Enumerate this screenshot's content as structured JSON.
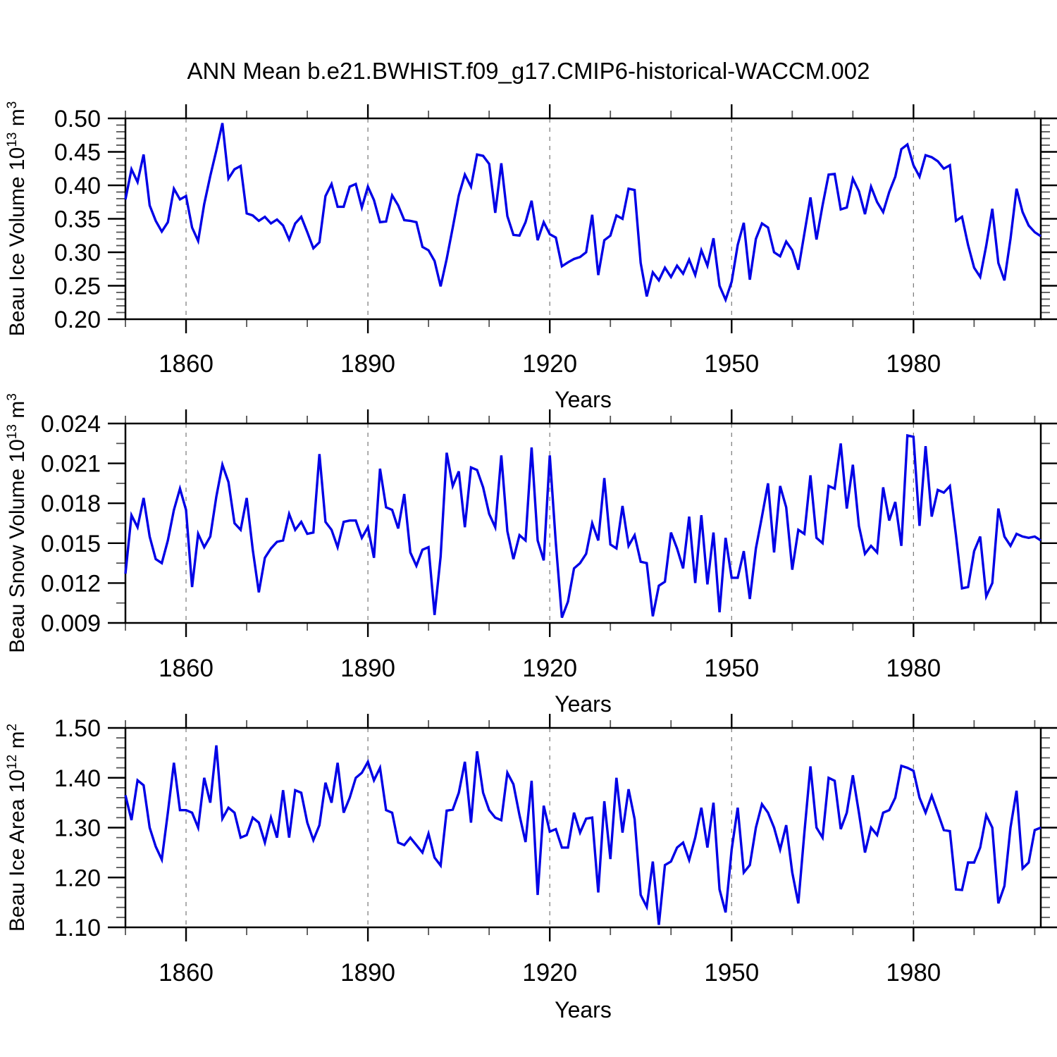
{
  "title": "ANN Mean b.e21.BWHIST.f09_g17.CMIP6-historical-WACCM.002",
  "style": {
    "line_color": "#0000E6",
    "grid_color": "#777777",
    "frame_color": "#000000",
    "minor_tick_color": "#555555"
  },
  "x_axis": {
    "label": "Years",
    "start": 1850,
    "end": 2001,
    "major_ticks": [
      1860,
      1890,
      1920,
      1950,
      1980
    ],
    "minor_tick_step": 10
  },
  "chart_data": [
    {
      "type": "line",
      "name": "beau-ice-volume",
      "title": "",
      "ylabel_plain": "Beau Ice Volume 10^13 m^3",
      "ylabel_segments": [
        {
          "text": "Beau Ice Volume 10"
        },
        {
          "text": "13",
          "super": true
        },
        {
          "text": " m"
        },
        {
          "text": "3",
          "super": true
        }
      ],
      "ylim": [
        0.2,
        0.5
      ],
      "ytick_labels": [
        "0.20",
        "0.25",
        "0.30",
        "0.35",
        "0.40",
        "0.45",
        "0.50"
      ],
      "ytick_minor_step": 0.01,
      "xlabel": "Years",
      "grid": "vertical-dashed",
      "legend": "none",
      "years": {
        "start": 1850,
        "end": 2001
      },
      "values": [
        0.379,
        0.424,
        0.405,
        0.446,
        0.37,
        0.347,
        0.331,
        0.345,
        0.395,
        0.379,
        0.384,
        0.337,
        0.317,
        0.372,
        0.414,
        0.452,
        0.493,
        0.41,
        0.424,
        0.429,
        0.358,
        0.355,
        0.347,
        0.353,
        0.343,
        0.349,
        0.34,
        0.319,
        0.343,
        0.353,
        0.33,
        0.306,
        0.315,
        0.384,
        0.402,
        0.368,
        0.368,
        0.398,
        0.402,
        0.367,
        0.398,
        0.378,
        0.345,
        0.346,
        0.385,
        0.37,
        0.348,
        0.347,
        0.345,
        0.308,
        0.303,
        0.287,
        0.249,
        0.29,
        0.337,
        0.385,
        0.416,
        0.398,
        0.446,
        0.444,
        0.432,
        0.359,
        0.433,
        0.354,
        0.326,
        0.325,
        0.345,
        0.377,
        0.318,
        0.345,
        0.327,
        0.322,
        0.279,
        0.285,
        0.29,
        0.293,
        0.3,
        0.356,
        0.266,
        0.318,
        0.325,
        0.355,
        0.35,
        0.395,
        0.393,
        0.284,
        0.234,
        0.27,
        0.258,
        0.277,
        0.263,
        0.28,
        0.268,
        0.289,
        0.266,
        0.303,
        0.28,
        0.321,
        0.25,
        0.229,
        0.256,
        0.311,
        0.344,
        0.259,
        0.32,
        0.343,
        0.337,
        0.3,
        0.294,
        0.316,
        0.303,
        0.274,
        0.328,
        0.382,
        0.319,
        0.37,
        0.416,
        0.417,
        0.364,
        0.367,
        0.41,
        0.391,
        0.357,
        0.398,
        0.375,
        0.36,
        0.39,
        0.413,
        0.454,
        0.461,
        0.43,
        0.413,
        0.445,
        0.442,
        0.436,
        0.425,
        0.43,
        0.347,
        0.353,
        0.311,
        0.277,
        0.263,
        0.31,
        0.365,
        0.284,
        0.258,
        0.32,
        0.395,
        0.36,
        0.34,
        0.33,
        0.324
      ]
    },
    {
      "type": "line",
      "name": "beau-snow-volume",
      "title": "",
      "ylabel_plain": "Beau Snow Volume 10^13 m^3",
      "ylabel_segments": [
        {
          "text": "Beau Snow Volume 10"
        },
        {
          "text": "13",
          "super": true
        },
        {
          "text": " m"
        },
        {
          "text": "3",
          "super": true
        }
      ],
      "ylim": [
        0.009,
        0.024
      ],
      "ytick_labels": [
        "0.009",
        "0.012",
        "0.015",
        "0.018",
        "0.021",
        "0.024"
      ],
      "ytick_minor_step": 0.0015,
      "xlabel": "Years",
      "grid": "vertical-dashed",
      "legend": "none",
      "years": {
        "start": 1850,
        "end": 2001
      },
      "values": [
        0.0127,
        0.0171,
        0.0162,
        0.0184,
        0.0155,
        0.0138,
        0.0135,
        0.0152,
        0.0175,
        0.0191,
        0.0175,
        0.0117,
        0.0157,
        0.0147,
        0.0155,
        0.0185,
        0.0209,
        0.0196,
        0.0165,
        0.016,
        0.0184,
        0.0145,
        0.0113,
        0.0139,
        0.0146,
        0.0151,
        0.0152,
        0.0172,
        0.016,
        0.0166,
        0.0157,
        0.0158,
        0.0217,
        0.0166,
        0.016,
        0.0147,
        0.0166,
        0.0167,
        0.0167,
        0.0154,
        0.0162,
        0.0139,
        0.0206,
        0.0177,
        0.0175,
        0.0161,
        0.0187,
        0.0143,
        0.0133,
        0.0145,
        0.0147,
        0.0096,
        0.014,
        0.0218,
        0.0193,
        0.0204,
        0.0162,
        0.0207,
        0.0205,
        0.0192,
        0.0172,
        0.0162,
        0.0216,
        0.0159,
        0.0138,
        0.0156,
        0.0152,
        0.0222,
        0.0152,
        0.0137,
        0.0216,
        0.015,
        0.0094,
        0.0106,
        0.0131,
        0.0135,
        0.0142,
        0.0165,
        0.0152,
        0.0199,
        0.0149,
        0.0146,
        0.0178,
        0.0148,
        0.0156,
        0.0136,
        0.0135,
        0.0095,
        0.0118,
        0.0121,
        0.0158,
        0.0146,
        0.0131,
        0.017,
        0.012,
        0.0171,
        0.0119,
        0.0158,
        0.0098,
        0.0154,
        0.0124,
        0.0124,
        0.0144,
        0.0108,
        0.0146,
        0.017,
        0.0195,
        0.0143,
        0.0193,
        0.0177,
        0.013,
        0.016,
        0.0157,
        0.0201,
        0.0154,
        0.015,
        0.0193,
        0.0191,
        0.0225,
        0.0176,
        0.0209,
        0.0163,
        0.0142,
        0.0148,
        0.0143,
        0.0192,
        0.0167,
        0.0181,
        0.0148,
        0.0231,
        0.023,
        0.0163,
        0.0223,
        0.017,
        0.019,
        0.0188,
        0.0193,
        0.0156,
        0.0116,
        0.0117,
        0.0144,
        0.0155,
        0.011,
        0.012,
        0.0176,
        0.0155,
        0.0148,
        0.0157,
        0.0155,
        0.0154,
        0.0155,
        0.0152
      ]
    },
    {
      "type": "line",
      "name": "beau-ice-area",
      "title": "",
      "ylabel_plain": "Beau Ice Area 10^12 m^2",
      "ylabel_segments": [
        {
          "text": "Beau Ice Area 10"
        },
        {
          "text": "12",
          "super": true
        },
        {
          "text": " m"
        },
        {
          "text": "2",
          "super": true
        }
      ],
      "ylim": [
        1.1,
        1.5
      ],
      "ytick_labels": [
        "1.10",
        "1.20",
        "1.30",
        "1.40",
        "1.50"
      ],
      "ytick_minor_step": 0.02,
      "xlabel": "Years",
      "grid": "vertical-dashed",
      "legend": "none",
      "years": {
        "start": 1850,
        "end": 2001
      },
      "values": [
        1.365,
        1.315,
        1.395,
        1.385,
        1.3,
        1.262,
        1.236,
        1.33,
        1.43,
        1.335,
        1.335,
        1.33,
        1.3,
        1.4,
        1.35,
        1.465,
        1.318,
        1.34,
        1.33,
        1.28,
        1.285,
        1.32,
        1.31,
        1.27,
        1.32,
        1.28,
        1.375,
        1.28,
        1.375,
        1.37,
        1.31,
        1.275,
        1.305,
        1.39,
        1.35,
        1.43,
        1.33,
        1.36,
        1.4,
        1.41,
        1.432,
        1.395,
        1.42,
        1.335,
        1.33,
        1.27,
        1.265,
        1.28,
        1.265,
        1.25,
        1.288,
        1.24,
        1.224,
        1.334,
        1.336,
        1.37,
        1.432,
        1.31,
        1.453,
        1.37,
        1.335,
        1.32,
        1.315,
        1.41,
        1.387,
        1.325,
        1.271,
        1.394,
        1.165,
        1.344,
        1.292,
        1.297,
        1.26,
        1.26,
        1.33,
        1.29,
        1.318,
        1.32,
        1.17,
        1.353,
        1.237,
        1.4,
        1.29,
        1.377,
        1.317,
        1.165,
        1.141,
        1.232,
        1.105,
        1.225,
        1.232,
        1.26,
        1.27,
        1.235,
        1.28,
        1.34,
        1.26,
        1.35,
        1.176,
        1.13,
        1.256,
        1.34,
        1.21,
        1.225,
        1.3,
        1.347,
        1.33,
        1.3,
        1.256,
        1.305,
        1.21,
        1.148,
        1.29,
        1.423,
        1.3,
        1.28,
        1.4,
        1.394,
        1.297,
        1.33,
        1.405,
        1.33,
        1.25,
        1.3,
        1.285,
        1.33,
        1.335,
        1.36,
        1.424,
        1.42,
        1.414,
        1.36,
        1.33,
        1.364,
        1.33,
        1.295,
        1.293,
        1.176,
        1.175,
        1.23,
        1.23,
        1.26,
        1.325,
        1.3,
        1.148,
        1.183,
        1.3,
        1.374,
        1.218,
        1.23,
        1.295,
        1.3
      ]
    }
  ]
}
